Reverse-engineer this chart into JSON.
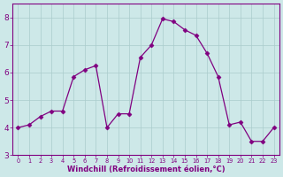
{
  "x": [
    0,
    1,
    2,
    3,
    4,
    5,
    6,
    7,
    8,
    9,
    10,
    11,
    12,
    13,
    14,
    15,
    16,
    17,
    18,
    19,
    20,
    21,
    22,
    23
  ],
  "y": [
    4.0,
    4.1,
    4.4,
    4.6,
    4.6,
    5.85,
    6.1,
    6.25,
    4.0,
    4.5,
    4.5,
    6.55,
    7.0,
    7.95,
    7.85,
    7.55,
    7.35,
    6.7,
    5.85,
    4.1,
    4.2,
    3.5,
    3.5,
    4.0
  ],
  "line_color": "#800080",
  "marker": "D",
  "marker_size": 2.5,
  "bg_color": "#cde8e8",
  "grid_color": "#aacccc",
  "xlabel": "Windchill (Refroidissement éolien,°C)",
  "xlabel_color": "#800080",
  "ylim": [
    3.0,
    8.5
  ],
  "xlim": [
    -0.5,
    23.5
  ],
  "yticks": [
    3,
    4,
    5,
    6,
    7,
    8
  ],
  "xticks": [
    0,
    1,
    2,
    3,
    4,
    5,
    6,
    7,
    8,
    9,
    10,
    11,
    12,
    13,
    14,
    15,
    16,
    17,
    18,
    19,
    20,
    21,
    22,
    23
  ],
  "tick_label_color": "#800080",
  "spine_color": "#800080",
  "xlabel_fontsize": 6.0,
  "xtick_fontsize": 4.8,
  "ytick_fontsize": 6.5
}
